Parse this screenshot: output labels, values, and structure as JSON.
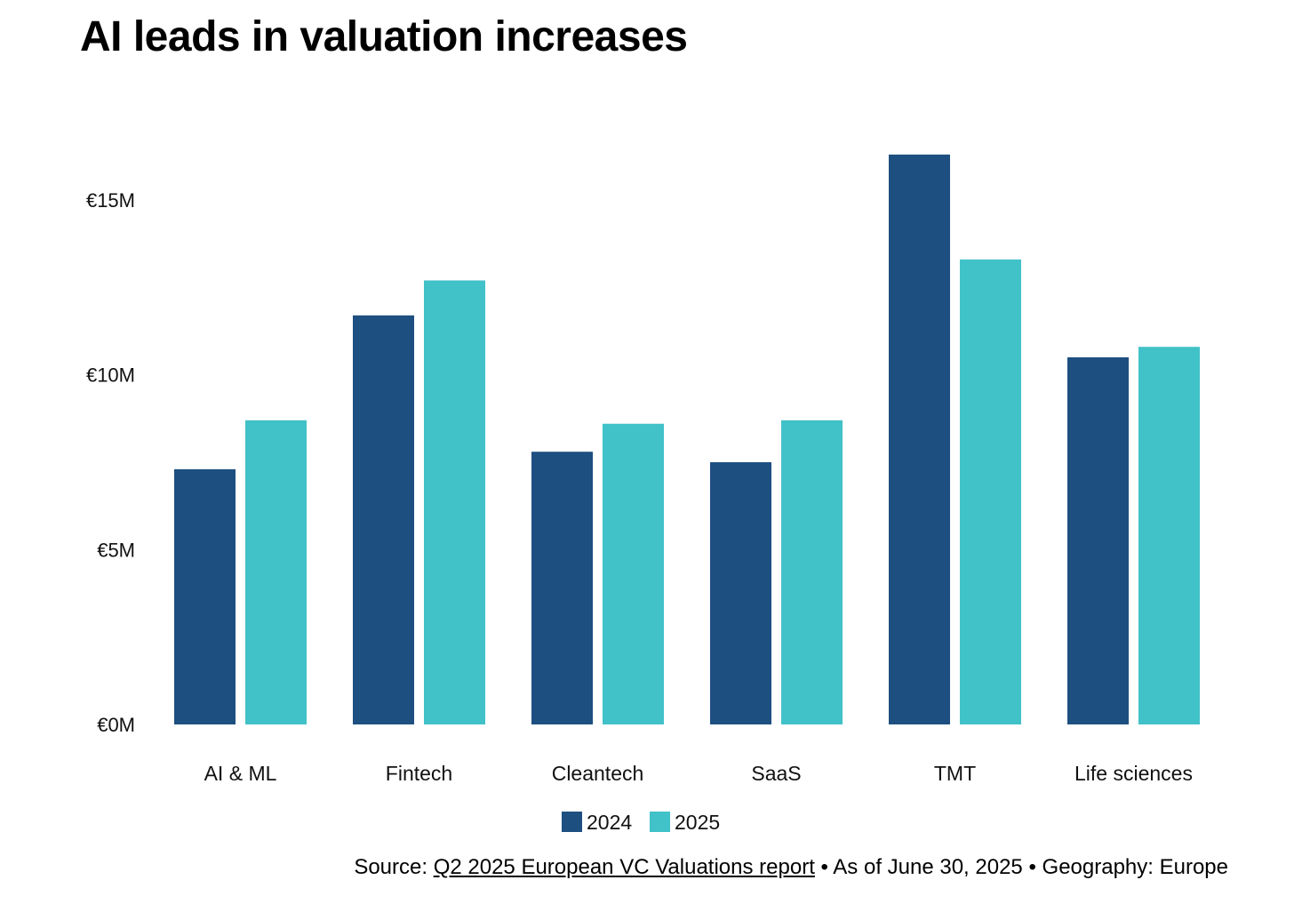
{
  "chart_data": {
    "type": "bar",
    "title": "AI leads in valuation increases",
    "xlabel": "",
    "ylabel": "",
    "ylim": [
      0,
      17
    ],
    "yticks": [
      0,
      5,
      10,
      15
    ],
    "ytick_labels": [
      "€0M",
      "€5M",
      "€10M",
      "€15M"
    ],
    "grid": false,
    "legend_position": "bottom-center",
    "categories": [
      "AI & ML",
      "Fintech",
      "Cleantech",
      "SaaS",
      "TMT",
      "Life sciences"
    ],
    "series": [
      {
        "name": "2024",
        "color": "#1d4f80",
        "values": [
          7.3,
          11.7,
          7.8,
          7.5,
          16.3,
          10.5
        ]
      },
      {
        "name": "2025",
        "color": "#41c1c8",
        "values": [
          8.7,
          12.7,
          8.6,
          8.7,
          13.3,
          10.8
        ]
      }
    ]
  },
  "source": {
    "prefix": "Source: ",
    "link_text": "Q2 2025 European VC Valuations report",
    "suffix": " • As of June 30, 2025 • Geography: Europe"
  }
}
